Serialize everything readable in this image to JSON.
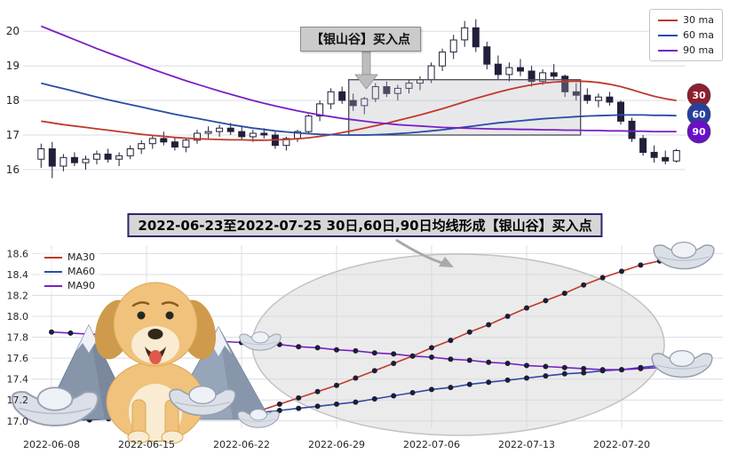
{
  "colors": {
    "ma30": "#c0392b",
    "ma60": "#2b4ba6",
    "ma90": "#7a1fc4",
    "candle": "#20203a",
    "grid": "#dcdce4",
    "badge30": "#8e1f2f",
    "badge60": "#27409e",
    "badge90": "#6a10c8",
    "annotation_bg": "#cbcbcb",
    "title_bg": "#d6d6d6",
    "title_border": "#35226e"
  },
  "top_chart": {
    "legend": [
      "30 ma",
      "60 ma",
      "90 ma"
    ],
    "annotation": "【银山谷】买入点",
    "badges": [
      {
        "label": "30",
        "value": 18.15
      },
      {
        "label": "60",
        "value": 17.6
      },
      {
        "label": "90",
        "value": 17.1
      }
    ],
    "highlight_region": {
      "start_index": 28,
      "end_index": 48,
      "y_low": 17.0,
      "y_high": 18.6
    }
  },
  "bottom_chart": {
    "title": "2022-06-23至2022-07-25 30日,60日,90日均线形成【银山谷】买入点",
    "legend": [
      "MA30",
      "MA60",
      "MA90"
    ]
  },
  "chart_data": [
    {
      "type": "candlestick",
      "title": "",
      "ylim": [
        15.2,
        20.7
      ],
      "yticks": [
        16,
        17,
        18,
        19,
        20
      ],
      "candles": [
        [
          16.3,
          16.75,
          16.05,
          16.6
        ],
        [
          16.6,
          16.8,
          15.75,
          16.1
        ],
        [
          16.1,
          16.45,
          15.95,
          16.35
        ],
        [
          16.35,
          16.5,
          16.1,
          16.2
        ],
        [
          16.2,
          16.4,
          16.0,
          16.3
        ],
        [
          16.3,
          16.55,
          16.15,
          16.45
        ],
        [
          16.45,
          16.6,
          16.2,
          16.3
        ],
        [
          16.3,
          16.5,
          16.1,
          16.4
        ],
        [
          16.4,
          16.7,
          16.3,
          16.6
        ],
        [
          16.6,
          16.85,
          16.45,
          16.75
        ],
        [
          16.75,
          17.0,
          16.6,
          16.9
        ],
        [
          16.9,
          17.1,
          16.7,
          16.8
        ],
        [
          16.8,
          16.95,
          16.55,
          16.65
        ],
        [
          16.65,
          16.9,
          16.5,
          16.85
        ],
        [
          16.85,
          17.15,
          16.75,
          17.05
        ],
        [
          17.05,
          17.25,
          16.9,
          17.1
        ],
        [
          17.1,
          17.3,
          16.95,
          17.2
        ],
        [
          17.2,
          17.35,
          17.0,
          17.1
        ],
        [
          17.1,
          17.25,
          16.85,
          16.95
        ],
        [
          16.95,
          17.15,
          16.8,
          17.05
        ],
        [
          17.05,
          17.2,
          16.9,
          17.0
        ],
        [
          17.0,
          17.1,
          16.6,
          16.7
        ],
        [
          16.7,
          16.95,
          16.55,
          16.9
        ],
        [
          16.9,
          17.15,
          16.8,
          17.1
        ],
        [
          17.1,
          17.6,
          17.05,
          17.55
        ],
        [
          17.55,
          18.0,
          17.4,
          17.9
        ],
        [
          17.9,
          18.35,
          17.75,
          18.25
        ],
        [
          18.25,
          18.4,
          17.9,
          18.0
        ],
        [
          18.0,
          18.2,
          17.7,
          17.85
        ],
        [
          17.85,
          18.1,
          17.6,
          18.05
        ],
        [
          18.05,
          18.5,
          17.95,
          18.4
        ],
        [
          18.4,
          18.55,
          18.1,
          18.2
        ],
        [
          18.2,
          18.45,
          18.0,
          18.35
        ],
        [
          18.35,
          18.6,
          18.2,
          18.5
        ],
        [
          18.5,
          18.7,
          18.3,
          18.6
        ],
        [
          18.6,
          19.1,
          18.5,
          19.0
        ],
        [
          19.0,
          19.5,
          18.85,
          19.4
        ],
        [
          19.4,
          19.9,
          19.2,
          19.75
        ],
        [
          19.75,
          20.3,
          19.55,
          20.1
        ],
        [
          20.1,
          20.35,
          19.4,
          19.55
        ],
        [
          19.55,
          19.7,
          18.9,
          19.05
        ],
        [
          19.05,
          19.3,
          18.6,
          18.75
        ],
        [
          18.75,
          19.1,
          18.55,
          18.95
        ],
        [
          18.95,
          19.2,
          18.7,
          18.85
        ],
        [
          18.85,
          19.0,
          18.4,
          18.55
        ],
        [
          18.55,
          18.9,
          18.45,
          18.8
        ],
        [
          18.8,
          19.05,
          18.6,
          18.7
        ],
        [
          18.7,
          18.75,
          18.1,
          18.25
        ],
        [
          18.25,
          18.5,
          18.0,
          18.15
        ],
        [
          18.15,
          18.35,
          17.9,
          18.0
        ],
        [
          18.0,
          18.2,
          17.8,
          18.1
        ],
        [
          18.1,
          18.25,
          17.85,
          17.95
        ],
        [
          17.95,
          18.0,
          17.3,
          17.4
        ],
        [
          17.4,
          17.5,
          16.8,
          16.9
        ],
        [
          16.9,
          17.0,
          16.4,
          16.5
        ],
        [
          16.5,
          16.7,
          16.2,
          16.35
        ],
        [
          16.35,
          16.55,
          16.15,
          16.25
        ],
        [
          16.25,
          16.6,
          16.2,
          16.55
        ]
      ],
      "series": [
        {
          "name": "30 ma",
          "color": "ma30",
          "values": [
            17.4,
            17.35,
            17.3,
            17.26,
            17.22,
            17.18,
            17.14,
            17.1,
            17.06,
            17.02,
            16.99,
            16.96,
            16.93,
            16.91,
            16.89,
            16.88,
            16.87,
            16.86,
            16.86,
            16.85,
            16.85,
            16.86,
            16.87,
            16.89,
            16.92,
            16.96,
            17.01,
            17.07,
            17.13,
            17.2,
            17.27,
            17.34,
            17.42,
            17.5,
            17.58,
            17.67,
            17.76,
            17.86,
            17.96,
            18.06,
            18.15,
            18.24,
            18.32,
            18.39,
            18.45,
            18.5,
            18.53,
            18.55,
            18.56,
            18.55,
            18.52,
            18.47,
            18.4,
            18.31,
            18.21,
            18.12,
            18.05,
            18.0
          ]
        },
        {
          "name": "60 ma",
          "color": "ma60",
          "values": [
            18.5,
            18.42,
            18.34,
            18.26,
            18.18,
            18.1,
            18.02,
            17.95,
            17.88,
            17.81,
            17.74,
            17.67,
            17.6,
            17.54,
            17.48,
            17.42,
            17.36,
            17.3,
            17.25,
            17.2,
            17.16,
            17.12,
            17.09,
            17.06,
            17.04,
            17.02,
            17.01,
            17.0,
            17.0,
            17.0,
            17.01,
            17.02,
            17.04,
            17.06,
            17.09,
            17.12,
            17.15,
            17.19,
            17.23,
            17.27,
            17.31,
            17.35,
            17.38,
            17.41,
            17.44,
            17.47,
            17.49,
            17.51,
            17.53,
            17.55,
            17.56,
            17.57,
            17.58,
            17.58,
            17.58,
            17.57,
            17.57,
            17.56
          ]
        },
        {
          "name": "90 ma",
          "color": "ma90",
          "values": [
            20.15,
            20.02,
            19.89,
            19.76,
            19.63,
            19.5,
            19.38,
            19.26,
            19.14,
            19.02,
            18.9,
            18.79,
            18.68,
            18.57,
            18.47,
            18.37,
            18.27,
            18.18,
            18.09,
            18.0,
            17.92,
            17.84,
            17.77,
            17.7,
            17.64,
            17.58,
            17.53,
            17.48,
            17.44,
            17.4,
            17.36,
            17.33,
            17.3,
            17.28,
            17.26,
            17.24,
            17.22,
            17.21,
            17.2,
            17.19,
            17.18,
            17.17,
            17.17,
            17.16,
            17.16,
            17.15,
            17.15,
            17.14,
            17.14,
            17.13,
            17.13,
            17.12,
            17.12,
            17.11,
            17.11,
            17.1,
            17.1,
            17.1
          ]
        }
      ]
    },
    {
      "type": "line",
      "title": "2022-06-23至2022-07-25 30日,60日,90日均线形成【银山谷】买入点",
      "ylim": [
        16.93,
        18.68
      ],
      "yticks": [
        17.0,
        17.2,
        17.4,
        17.6,
        17.8,
        18.0,
        18.2,
        18.4,
        18.6
      ],
      "x": [
        "2022-06-08",
        "2022-06-09",
        "2022-06-10",
        "2022-06-13",
        "2022-06-14",
        "2022-06-15",
        "2022-06-16",
        "2022-06-17",
        "2022-06-20",
        "2022-06-21",
        "2022-06-22",
        "2022-06-23",
        "2022-06-24",
        "2022-06-27",
        "2022-06-28",
        "2022-06-29",
        "2022-06-30",
        "2022-07-01",
        "2022-07-04",
        "2022-07-05",
        "2022-07-06",
        "2022-07-07",
        "2022-07-08",
        "2022-07-11",
        "2022-07-12",
        "2022-07-13",
        "2022-07-14",
        "2022-07-15",
        "2022-07-18",
        "2022-07-19",
        "2022-07-20",
        "2022-07-21",
        "2022-07-22",
        "2022-07-25"
      ],
      "xtick_indices": [
        0,
        5,
        10,
        15,
        20,
        25,
        30
      ],
      "series": [
        {
          "name": "MA30",
          "color": "ma30",
          "values": [
            17.02,
            17.02,
            17.03,
            17.03,
            17.04,
            17.04,
            17.05,
            17.05,
            17.06,
            17.07,
            17.08,
            17.1,
            17.16,
            17.22,
            17.28,
            17.34,
            17.41,
            17.48,
            17.55,
            17.62,
            17.7,
            17.77,
            17.85,
            17.92,
            18.0,
            18.08,
            18.15,
            18.22,
            18.3,
            18.37,
            18.43,
            18.49,
            18.53,
            18.57
          ]
        },
        {
          "name": "MA60",
          "color": "ma60",
          "values": [
            17.0,
            17.01,
            17.01,
            17.02,
            17.02,
            17.03,
            17.04,
            17.04,
            17.05,
            17.06,
            17.07,
            17.08,
            17.1,
            17.12,
            17.14,
            17.16,
            17.18,
            17.21,
            17.24,
            17.27,
            17.3,
            17.32,
            17.35,
            17.37,
            17.39,
            17.41,
            17.43,
            17.45,
            17.46,
            17.48,
            17.49,
            17.51,
            17.53,
            17.55
          ]
        },
        {
          "name": "MA90",
          "color": "ma90",
          "values": [
            17.85,
            17.84,
            17.83,
            17.82,
            17.81,
            17.8,
            17.79,
            17.78,
            17.77,
            17.76,
            17.75,
            17.74,
            17.73,
            17.71,
            17.7,
            17.68,
            17.67,
            17.65,
            17.64,
            17.62,
            17.61,
            17.59,
            17.58,
            17.56,
            17.55,
            17.53,
            17.52,
            17.51,
            17.5,
            17.49,
            17.49,
            17.5,
            17.51,
            17.52
          ]
        }
      ]
    }
  ]
}
